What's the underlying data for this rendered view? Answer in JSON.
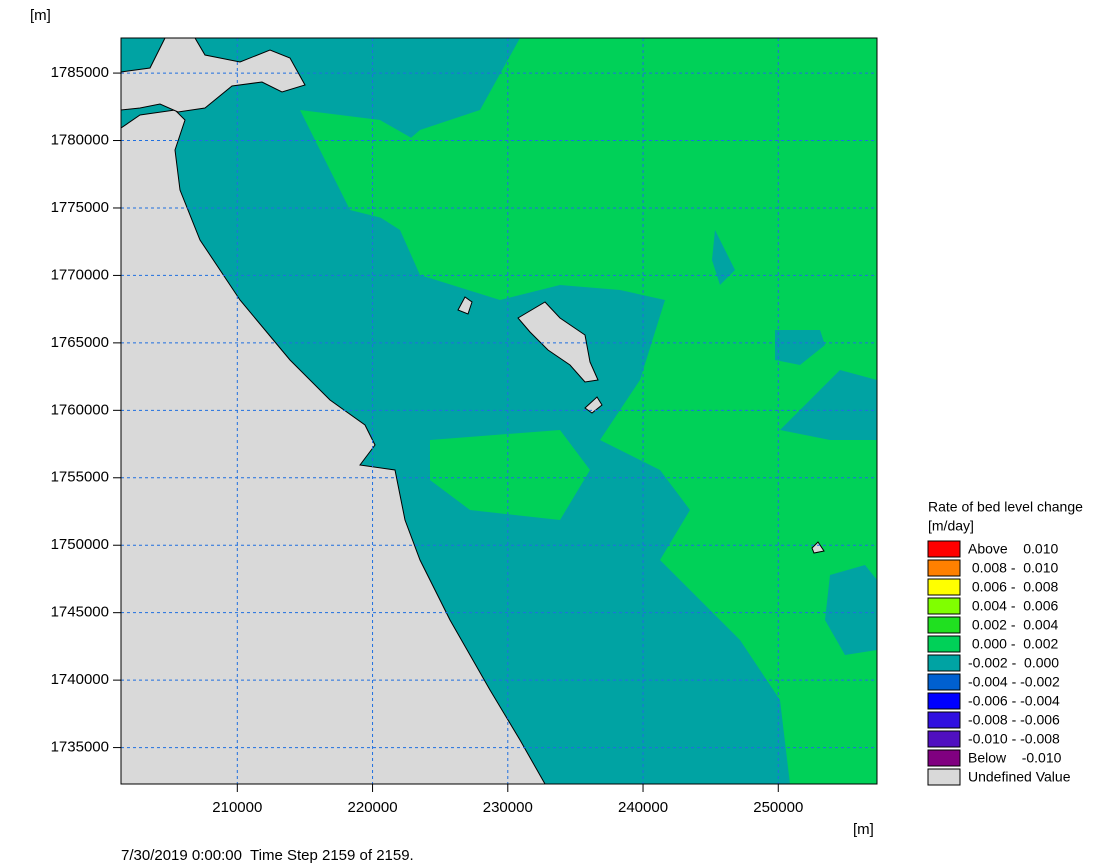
{
  "chart_data": {
    "type": "map",
    "y_unit": "[m]",
    "x_unit": "[m]",
    "xlim": [
      201400,
      257300
    ],
    "ylim": [
      1732300,
      1787600
    ],
    "xticks": [
      210000,
      220000,
      230000,
      240000,
      250000
    ],
    "yticks": [
      1735000,
      1740000,
      1745000,
      1750000,
      1755000,
      1760000,
      1765000,
      1770000,
      1775000,
      1780000,
      1785000
    ],
    "grid": true,
    "legend": {
      "title": "Rate of bed level change",
      "unit": "[m/day]",
      "entries": [
        {
          "label": "Above    0.010",
          "color": "#ff0000"
        },
        {
          "label": " 0.008 -  0.010",
          "color": "#ff8000"
        },
        {
          "label": " 0.006 -  0.008",
          "color": "#ffff00"
        },
        {
          "label": " 0.004 -  0.006",
          "color": "#80ff00"
        },
        {
          "label": " 0.002 -  0.004",
          "color": "#20e020"
        },
        {
          "label": " 0.000 -  0.002",
          "color": "#00d158"
        },
        {
          "label": "-0.002 -  0.000",
          "color": "#00a3a3"
        },
        {
          "label": "-0.004 - -0.002",
          "color": "#0060d0"
        },
        {
          "label": "-0.006 - -0.004",
          "color": "#0000ff"
        },
        {
          "label": "-0.008 - -0.006",
          "color": "#3010e0"
        },
        {
          "label": "-0.010 - -0.008",
          "color": "#5010c0"
        },
        {
          "label": "Below    -0.010",
          "color": "#800080"
        },
        {
          "label": "Undefined Value",
          "color": "#d9d9d9"
        }
      ]
    },
    "status": "7/30/2019 0:00:00  Time Step 2159 of 2159."
  }
}
